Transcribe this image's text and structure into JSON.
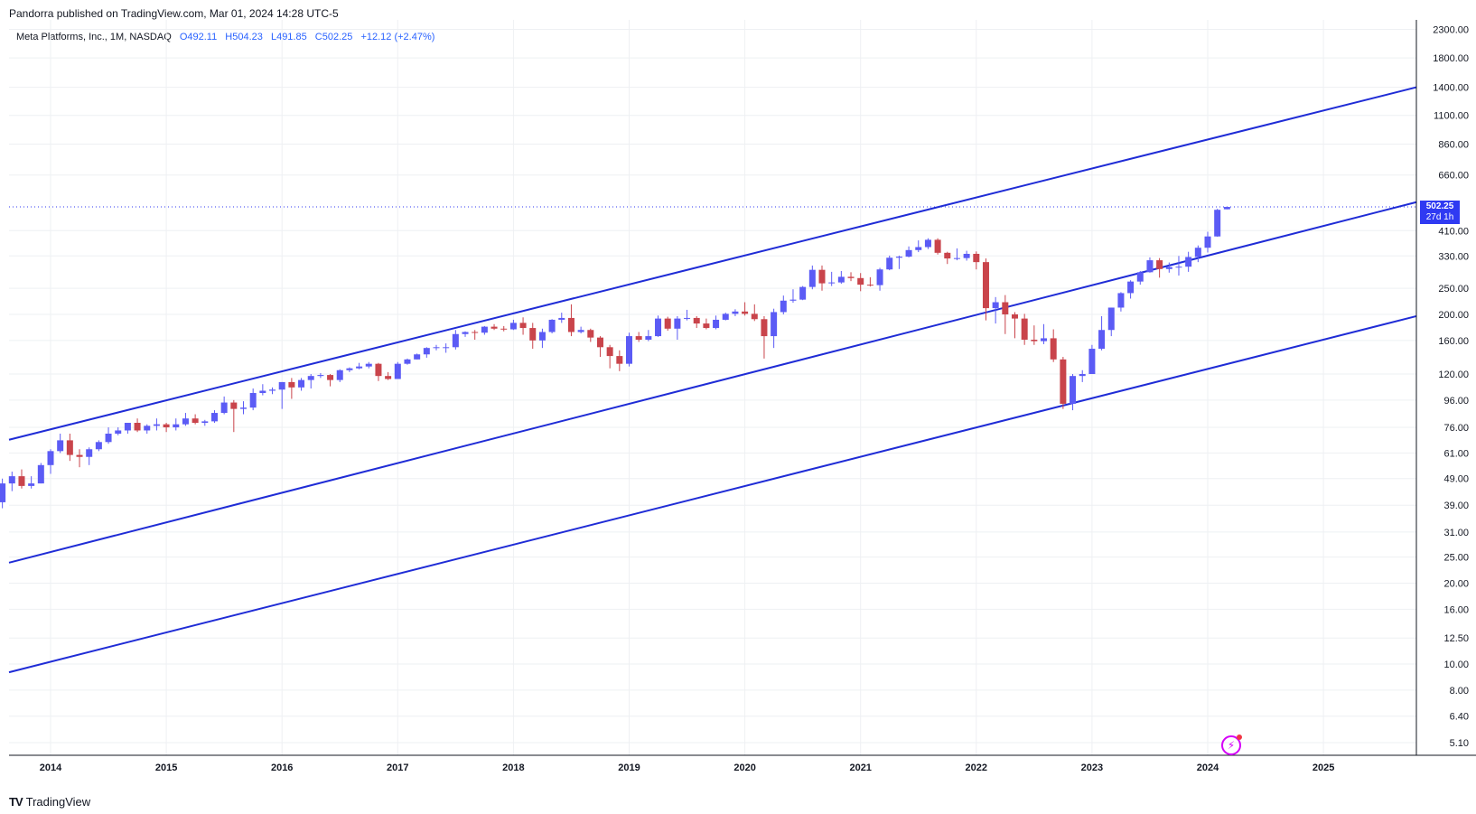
{
  "header": {
    "published_by": "Pandorra published on TradingView.com, Mar 01, 2024 14:28 UTC-5"
  },
  "legend": {
    "symbol": "Meta Platforms, Inc., 1M, NASDAQ",
    "open": "O492.11",
    "high": "H504.23",
    "low": "L491.85",
    "close": "C502.25",
    "change": "+12.12 (+2.47%)"
  },
  "price_badge": {
    "price": "502.25",
    "countdown": "27d 1h"
  },
  "footer": {
    "brand": "TradingView",
    "logo_icon": "tradingview-logo-icon"
  },
  "colors": {
    "up": "#5b5bf5",
    "down": "#c9444b",
    "channel": "#1f2cd6",
    "badge": "#2f3af2"
  },
  "chart_data": {
    "type": "candlestick",
    "scale": "log",
    "grid": true,
    "x_labels": [
      "2014",
      "2015",
      "2016",
      "2017",
      "2018",
      "2019",
      "2020",
      "2021",
      "2022",
      "2023",
      "2024",
      "2025"
    ],
    "y_ticks": [
      5.1,
      6.4,
      8.0,
      10.0,
      12.5,
      16.0,
      20.0,
      25.0,
      31.0,
      39.0,
      49.0,
      61.0,
      76.0,
      96.0,
      120.0,
      160.0,
      200.0,
      250.0,
      330.0,
      410.0,
      660.0,
      860.0,
      1100.0,
      1400.0,
      1800.0,
      2300.0
    ],
    "y_tick_labels": [
      "5.10",
      "6.40",
      "8.00",
      "10.00",
      "12.50",
      "16.00",
      "20.00",
      "25.00",
      "31.00",
      "39.00",
      "49.00",
      "61.00",
      "76.00",
      "96.00",
      "120.00",
      "160.00",
      "200.00",
      "250.00",
      "330.00",
      "410.00",
      "660.00",
      "860.00",
      "1100.00",
      "1400.00",
      "1800.00",
      "2300.00"
    ],
    "last_price": 502.25,
    "channel_lines": [
      {
        "from": [
          "2013-07",
          66
        ],
        "to": [
          "2026-01",
          1470
        ]
      },
      {
        "from": [
          "2013-07",
          23
        ],
        "to": [
          "2026-01",
          550
        ]
      },
      {
        "from": [
          "2013-07",
          9.0
        ],
        "to": [
          "2026-01",
          207
        ]
      }
    ],
    "candles": [
      [
        "2013-08",
        40,
        49,
        38,
        47
      ],
      [
        "2013-09",
        47,
        52,
        44,
        50
      ],
      [
        "2013-10",
        50,
        53,
        45,
        46
      ],
      [
        "2013-11",
        46,
        50,
        45,
        47
      ],
      [
        "2013-12",
        47,
        56,
        47,
        55
      ],
      [
        "2014-01",
        55,
        63,
        51,
        62
      ],
      [
        "2014-02",
        62,
        72,
        61,
        68
      ],
      [
        "2014-03",
        68,
        72,
        57,
        60
      ],
      [
        "2014-04",
        60,
        63,
        54,
        59
      ],
      [
        "2014-05",
        59,
        64,
        55,
        63
      ],
      [
        "2014-06",
        63,
        68,
        62,
        67
      ],
      [
        "2014-07",
        67,
        76,
        66,
        72
      ],
      [
        "2014-08",
        72,
        76,
        71,
        74
      ],
      [
        "2014-09",
        74,
        79,
        72,
        79
      ],
      [
        "2014-10",
        79,
        82,
        73,
        74
      ],
      [
        "2014-11",
        74,
        78,
        72,
        77
      ],
      [
        "2014-12",
        77,
        82,
        74,
        78
      ],
      [
        "2015-01",
        78,
        79,
        73,
        76
      ],
      [
        "2015-02",
        76,
        82,
        74,
        78
      ],
      [
        "2015-03",
        78,
        86,
        77,
        82
      ],
      [
        "2015-04",
        82,
        85,
        78,
        79
      ],
      [
        "2015-05",
        79,
        81,
        77,
        80
      ],
      [
        "2015-06",
        80,
        88,
        79,
        86
      ],
      [
        "2015-07",
        86,
        99,
        85,
        94
      ],
      [
        "2015-08",
        94,
        96,
        73,
        89
      ],
      [
        "2015-09",
        89,
        95,
        85,
        90
      ],
      [
        "2015-10",
        90,
        106,
        88,
        102
      ],
      [
        "2015-11",
        102,
        110,
        100,
        104
      ],
      [
        "2015-12",
        104,
        107,
        101,
        105
      ],
      [
        "2016-01",
        105,
        112,
        89,
        112
      ],
      [
        "2016-02",
        112,
        116,
        97,
        107
      ],
      [
        "2016-03",
        107,
        116,
        104,
        114
      ],
      [
        "2016-04",
        114,
        120,
        106,
        118
      ],
      [
        "2016-05",
        118,
        121,
        116,
        119
      ],
      [
        "2016-06",
        119,
        120,
        108,
        114
      ],
      [
        "2016-07",
        114,
        125,
        112,
        124
      ],
      [
        "2016-08",
        124,
        127,
        122,
        126
      ],
      [
        "2016-09",
        126,
        132,
        125,
        128
      ],
      [
        "2016-10",
        128,
        133,
        126,
        131
      ],
      [
        "2016-11",
        131,
        132,
        113,
        118
      ],
      [
        "2016-12",
        118,
        122,
        114,
        115
      ],
      [
        "2017-01",
        115,
        133,
        115,
        131
      ],
      [
        "2017-02",
        131,
        137,
        130,
        136
      ],
      [
        "2017-03",
        136,
        143,
        136,
        142
      ],
      [
        "2017-04",
        142,
        151,
        138,
        150
      ],
      [
        "2017-05",
        150,
        154,
        147,
        151
      ],
      [
        "2017-06",
        151,
        156,
        144,
        151
      ],
      [
        "2017-07",
        151,
        175,
        148,
        169
      ],
      [
        "2017-08",
        169,
        173,
        165,
        172
      ],
      [
        "2017-09",
        172,
        175,
        161,
        171
      ],
      [
        "2017-10",
        171,
        181,
        168,
        180
      ],
      [
        "2017-11",
        180,
        184,
        175,
        177
      ],
      [
        "2017-12",
        177,
        181,
        173,
        176
      ],
      [
        "2018-01",
        176,
        191,
        175,
        186
      ],
      [
        "2018-02",
        186,
        195,
        168,
        178
      ],
      [
        "2018-03",
        178,
        186,
        149,
        160
      ],
      [
        "2018-04",
        160,
        177,
        150,
        172
      ],
      [
        "2018-05",
        172,
        192,
        170,
        191
      ],
      [
        "2018-06",
        191,
        203,
        186,
        194
      ],
      [
        "2018-07",
        194,
        218,
        166,
        172
      ],
      [
        "2018-08",
        172,
        180,
        170,
        175
      ],
      [
        "2018-09",
        175,
        177,
        158,
        164
      ],
      [
        "2018-10",
        164,
        166,
        139,
        151
      ],
      [
        "2018-11",
        151,
        154,
        126,
        140
      ],
      [
        "2018-12",
        140,
        147,
        123,
        131
      ],
      [
        "2019-01",
        131,
        171,
        128,
        166
      ],
      [
        "2019-02",
        166,
        172,
        158,
        161
      ],
      [
        "2019-03",
        161,
        175,
        159,
        166
      ],
      [
        "2019-04",
        166,
        198,
        165,
        193
      ],
      [
        "2019-05",
        193,
        196,
        174,
        177
      ],
      [
        "2019-06",
        177,
        197,
        161,
        193
      ],
      [
        "2019-07",
        193,
        208,
        190,
        194
      ],
      [
        "2019-08",
        194,
        197,
        178,
        185
      ],
      [
        "2019-09",
        185,
        193,
        176,
        178
      ],
      [
        "2019-10",
        178,
        198,
        176,
        191
      ],
      [
        "2019-11",
        191,
        203,
        190,
        201
      ],
      [
        "2019-12",
        201,
        209,
        197,
        205
      ],
      [
        "2020-01",
        205,
        222,
        198,
        201
      ],
      [
        "2020-02",
        201,
        218,
        189,
        192
      ],
      [
        "2020-03",
        192,
        197,
        137,
        166
      ],
      [
        "2020-04",
        166,
        210,
        150,
        204
      ],
      [
        "2020-05",
        204,
        235,
        200,
        225
      ],
      [
        "2020-06",
        225,
        248,
        221,
        227
      ],
      [
        "2020-07",
        227,
        255,
        226,
        253
      ],
      [
        "2020-08",
        253,
        304,
        248,
        293
      ],
      [
        "2020-09",
        293,
        304,
        245,
        261
      ],
      [
        "2020-10",
        261,
        288,
        255,
        263
      ],
      [
        "2020-11",
        263,
        290,
        260,
        276
      ],
      [
        "2020-12",
        276,
        287,
        266,
        273
      ],
      [
        "2021-01",
        273,
        285,
        244,
        258
      ],
      [
        "2021-02",
        258,
        275,
        254,
        257
      ],
      [
        "2021-03",
        257,
        298,
        245,
        294
      ],
      [
        "2021-04",
        294,
        331,
        292,
        325
      ],
      [
        "2021-05",
        325,
        331,
        295,
        328
      ],
      [
        "2021-06",
        328,
        358,
        326,
        347
      ],
      [
        "2021-07",
        347,
        377,
        341,
        356
      ],
      [
        "2021-08",
        356,
        384,
        350,
        379
      ],
      [
        "2021-09",
        379,
        384,
        334,
        339
      ],
      [
        "2021-10",
        339,
        342,
        308,
        323
      ],
      [
        "2021-11",
        323,
        352,
        318,
        324
      ],
      [
        "2021-12",
        324,
        345,
        317,
        336
      ],
      [
        "2022-01",
        336,
        343,
        294,
        313
      ],
      [
        "2022-02",
        313,
        323,
        190,
        211
      ],
      [
        "2022-03",
        211,
        232,
        185,
        222
      ],
      [
        "2022-04",
        222,
        236,
        169,
        200
      ],
      [
        "2022-05",
        200,
        204,
        163,
        193
      ],
      [
        "2022-06",
        193,
        201,
        154,
        161
      ],
      [
        "2022-07",
        161,
        182,
        154,
        159
      ],
      [
        "2022-08",
        159,
        184,
        155,
        163
      ],
      [
        "2022-09",
        163,
        176,
        133,
        136
      ],
      [
        "2022-10",
        136,
        139,
        89,
        93
      ],
      [
        "2022-11",
        93,
        120,
        88,
        118
      ],
      [
        "2022-12",
        118,
        124,
        112,
        120
      ],
      [
        "2023-01",
        120,
        154,
        120,
        149
      ],
      [
        "2023-02",
        149,
        197,
        147,
        175
      ],
      [
        "2023-03",
        175,
        212,
        166,
        212
      ],
      [
        "2023-04",
        212,
        242,
        205,
        240
      ],
      [
        "2023-05",
        240,
        268,
        229,
        265
      ],
      [
        "2023-06",
        265,
        290,
        258,
        287
      ],
      [
        "2023-07",
        287,
        326,
        286,
        318
      ],
      [
        "2023-08",
        318,
        324,
        274,
        295
      ],
      [
        "2023-09",
        295,
        312,
        286,
        300
      ],
      [
        "2023-10",
        300,
        330,
        279,
        301
      ],
      [
        "2023-11",
        301,
        342,
        288,
        327
      ],
      [
        "2023-12",
        327,
        361,
        313,
        354
      ],
      [
        "2024-01",
        354,
        406,
        340,
        390
      ],
      [
        "2024-02",
        390,
        494,
        389,
        490
      ],
      [
        "2024-03",
        492.11,
        504.23,
        491.85,
        502.25
      ]
    ]
  }
}
